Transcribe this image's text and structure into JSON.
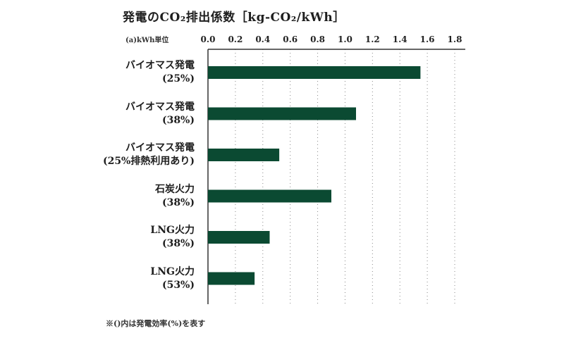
{
  "chart_data": {
    "type": "bar",
    "orientation": "horizontal",
    "title": "発電のCO₂排出係数［kg-CO₂/kWh］",
    "unit_label": "(a)kWh単位",
    "categories": [
      [
        "バイオマス発電",
        "(25%)"
      ],
      [
        "バイオマス発電",
        "(38%)"
      ],
      [
        "バイオマス発電",
        "(25%排熱利用あり)"
      ],
      [
        "石炭火力",
        "(38%)"
      ],
      [
        "LNG火力",
        "(38%)"
      ],
      [
        "LNG火力",
        "(53%)"
      ]
    ],
    "values": [
      1.55,
      1.08,
      0.52,
      0.9,
      0.45,
      0.34
    ],
    "xlim": [
      0,
      1.8
    ],
    "xticks": [
      "0.0",
      "0.2",
      "0.4",
      "0.6",
      "0.8",
      "1.0",
      "1.2",
      "1.4",
      "1.6",
      "1.8"
    ],
    "bar_color": "#0b4a32",
    "grid": "vertical-dotted",
    "note": "※()内は発電効率(%)を表す"
  }
}
